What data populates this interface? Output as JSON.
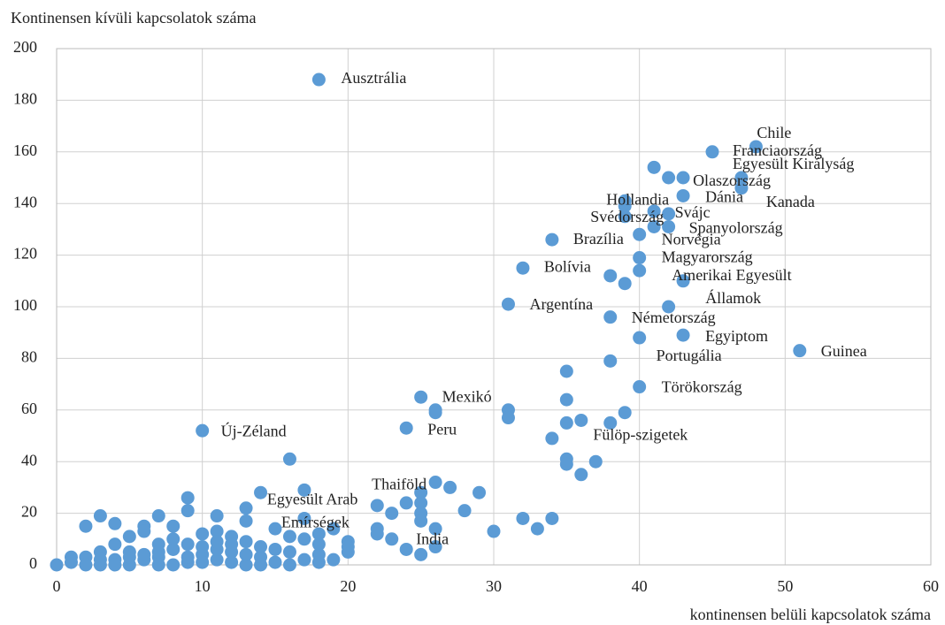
{
  "chart_data": {
    "type": "scatter",
    "x_label": "kontinensen belüli kapcsolatok száma",
    "y_label": "Kontinensen kívüli kapcsolatok száma",
    "xlim": [
      0,
      60
    ],
    "xticks": [
      0,
      10,
      20,
      30,
      40,
      50,
      60
    ],
    "ylim": [
      0,
      200
    ],
    "yticks": [
      0,
      20,
      40,
      60,
      80,
      100,
      120,
      140,
      160,
      180,
      200
    ],
    "grid": true,
    "series": [
      {
        "color": "#5b9bd5",
        "x": [
          18,
          48,
          45,
          47,
          43,
          43,
          47,
          39,
          42,
          39,
          42,
          34,
          40,
          40,
          32,
          39,
          31,
          38,
          43,
          51,
          40,
          40,
          25,
          24,
          35,
          10,
          26,
          17,
          24,
          41,
          42,
          39,
          41,
          41,
          40,
          38,
          43,
          42,
          38,
          35,
          35,
          36,
          38,
          39,
          34,
          35,
          35,
          37,
          36,
          31,
          31,
          26,
          26,
          25,
          25,
          25,
          25,
          26,
          26,
          25,
          24,
          22,
          23,
          22,
          22,
          23,
          27,
          28,
          29,
          30,
          32,
          33,
          34,
          16,
          17,
          14,
          9,
          9,
          13,
          11,
          7,
          3,
          2,
          4,
          6,
          6,
          8,
          5,
          7,
          9,
          10,
          11,
          12,
          13,
          15,
          16,
          18,
          19,
          20,
          20,
          18,
          17,
          16,
          15,
          14,
          13,
          12,
          11,
          10,
          9,
          8,
          7,
          6,
          5,
          4,
          3,
          2,
          1,
          0,
          1,
          2,
          3,
          4,
          5,
          6,
          7,
          8,
          9,
          10,
          11,
          12,
          13,
          14,
          15,
          16,
          17,
          18,
          19,
          20,
          18,
          13,
          11,
          8,
          7,
          5,
          3,
          4,
          10,
          14,
          12
        ],
        "y": [
          188,
          162,
          160,
          150,
          150,
          143,
          146,
          141,
          136,
          135,
          131,
          126,
          128,
          119,
          115,
          109,
          101,
          96,
          89,
          83,
          88,
          69,
          65,
          53,
          55,
          52,
          32,
          18,
          6,
          154,
          150,
          139,
          137,
          131,
          114,
          112,
          110,
          100,
          79,
          75,
          64,
          56,
          55,
          59,
          49,
          41,
          39,
          40,
          35,
          60,
          57,
          60,
          59,
          28,
          24,
          20,
          17,
          14,
          7,
          4,
          24,
          23,
          20,
          14,
          12,
          10,
          30,
          21,
          28,
          13,
          18,
          14,
          18,
          41,
          29,
          28,
          26,
          21,
          22,
          19,
          19,
          19,
          15,
          16,
          15,
          13,
          15,
          11,
          8,
          8,
          12,
          13,
          11,
          17,
          14,
          11,
          12,
          14,
          9,
          7,
          4,
          2,
          0,
          6,
          3,
          0,
          5,
          2,
          4,
          1,
          0,
          3,
          2,
          0,
          2,
          0,
          3,
          3,
          0,
          1,
          0,
          5,
          8,
          5,
          4,
          0,
          6,
          3,
          7,
          6,
          1,
          9,
          7,
          1,
          5,
          10,
          1,
          2,
          5,
          8,
          4,
          9,
          10,
          5,
          3,
          2,
          0,
          1,
          0,
          8
        ],
        "labels": [
          "Ausztrália",
          "Chile",
          "Franciaország",
          "Egyesült Királyság",
          "Olaszország",
          "Dánia",
          "Kanada",
          "Hollandia",
          "Svájc",
          "Svédország",
          "Spanyolország",
          "Brazília",
          "Norvégia",
          "Magyarország",
          "Bolívia",
          [
            "Amerikai Egyesült",
            "Államok"
          ],
          "Argentína",
          "Németország",
          "Egyiptom",
          "Guinea",
          "Portugália",
          "Törökország",
          "Mexikó",
          "Peru",
          "Fülöp-szigetek",
          "Új-Zéland",
          "Thaiföld",
          [
            "Egyesült Arab",
            "Emírségek"
          ],
          "India"
        ]
      }
    ]
  }
}
